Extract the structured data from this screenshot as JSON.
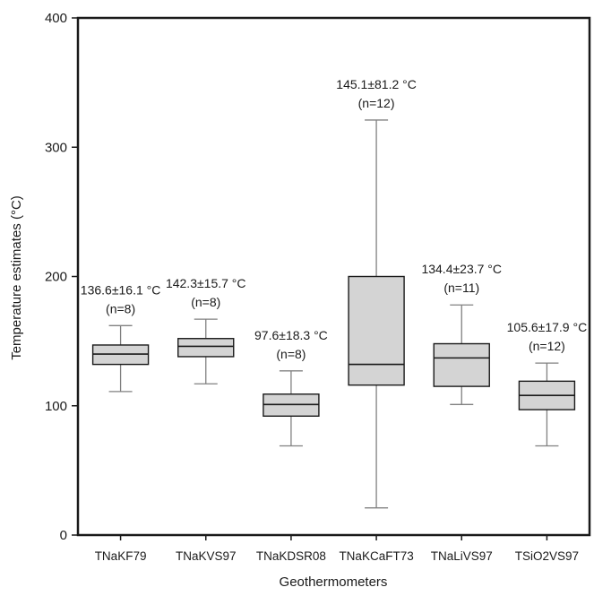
{
  "chart_data": {
    "type": "box",
    "xlabel": "Geothermometers",
    "ylabel": "Temperature estimates (°C)",
    "ylim": [
      0,
      400
    ],
    "yticks": [
      0,
      100,
      200,
      300,
      400
    ],
    "grid": false,
    "colors": {
      "box_fill": "#d4d4d4",
      "box_stroke": "#1a1a1a",
      "whisker": "#808080"
    },
    "categories": [
      "TNaKF79",
      "TNaKVS97",
      "TNaKDSR08",
      "TNaKCaFT73",
      "TNaLiVS97",
      "TSiO2VS97"
    ],
    "boxes": [
      {
        "category": "TNaKF79",
        "min": 111,
        "q1": 132,
        "median": 140,
        "q3": 147,
        "max": 162,
        "label": "136.6±16.1 °C",
        "n_label": "(n=8)"
      },
      {
        "category": "TNaKVS97",
        "min": 117,
        "q1": 138,
        "median": 146,
        "q3": 152,
        "max": 167,
        "label": "142.3±15.7 °C",
        "n_label": "(n=8)"
      },
      {
        "category": "TNaKDSR08",
        "min": 69,
        "q1": 92,
        "median": 101,
        "q3": 109,
        "max": 127,
        "label": "97.6±18.3 °C",
        "n_label": "(n=8)"
      },
      {
        "category": "TNaKCaFT73",
        "min": 21,
        "q1": 116,
        "median": 132,
        "q3": 200,
        "max": 321,
        "label": "145.1±81.2 °C",
        "n_label": "(n=12)"
      },
      {
        "category": "TNaLiVS97",
        "min": 101,
        "q1": 115,
        "median": 137,
        "q3": 148,
        "max": 178,
        "label": "134.4±23.7 °C",
        "n_label": "(n=11)"
      },
      {
        "category": "TSiO2VS97",
        "min": 69,
        "q1": 97,
        "median": 108,
        "q3": 119,
        "max": 133,
        "label": "105.6±17.9 °C",
        "n_label": "(n=12)"
      }
    ]
  }
}
